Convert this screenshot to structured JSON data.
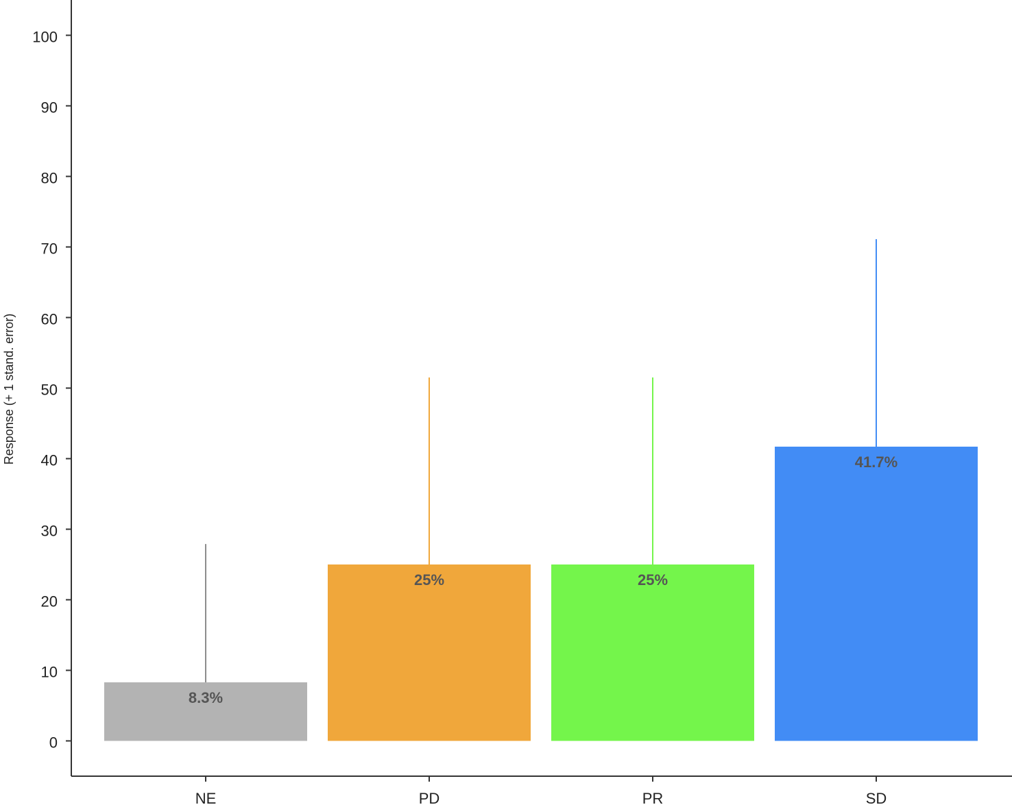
{
  "chart_data": {
    "type": "bar",
    "y_label": "Response (+ 1 stand. error)",
    "categories": [
      "NE",
      "PD",
      "PR",
      "SD"
    ],
    "values": [
      8.3,
      25,
      25,
      41.7
    ],
    "value_labels": [
      "8.3%",
      "25%",
      "25%",
      "41.7%"
    ],
    "errors": [
      19.6,
      26.5,
      26.5,
      29.4
    ],
    "colors": [
      "#b3b3b3",
      "#f0a73b",
      "#74f54b",
      "#428cf5"
    ],
    "error_colors": [
      "#8c8c8c",
      "#f0a73b",
      "#74f54b",
      "#428cf5"
    ],
    "ylim": [
      -5,
      105
    ],
    "yticks": [
      0,
      10,
      20,
      30,
      40,
      50,
      60,
      70,
      80,
      90,
      100
    ],
    "grid": false
  }
}
